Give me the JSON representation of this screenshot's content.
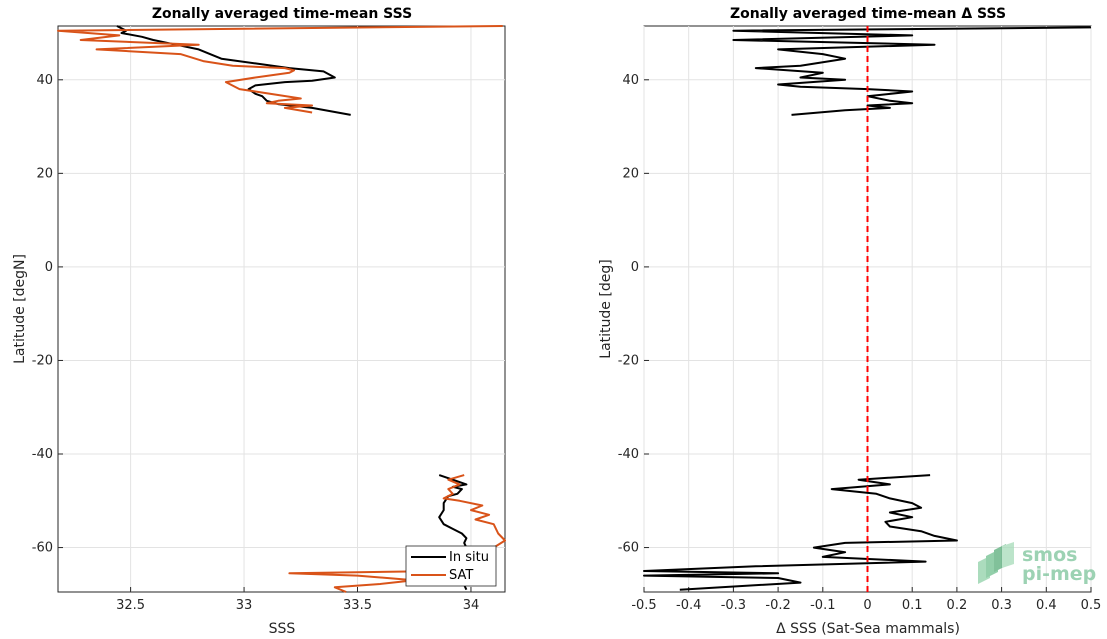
{
  "chart_data": [
    {
      "type": "line",
      "title": "Zonally averaged time-mean SSS",
      "xlabel": "SSS",
      "ylabel": "Latitude [degN]",
      "xlim": [
        32.18,
        34.15
      ],
      "ylim": [
        -69.5,
        51.5
      ],
      "xticks": [
        32.5,
        33,
        33.5,
        34
      ],
      "xtick_labels": [
        "32.5",
        "33",
        "33.5",
        "34"
      ],
      "yticks": [
        -60,
        -40,
        -20,
        0,
        20,
        40
      ],
      "ytick_labels": [
        "-60",
        "-40",
        "-20",
        "0",
        "20",
        "40"
      ],
      "grid": true,
      "legend_position": "bottom-right",
      "series": [
        {
          "name": "In situ",
          "color": "#000000",
          "segments": [
            [
              [
                32.44,
                51.5
              ],
              [
                32.48,
                50.5
              ],
              [
                32.46,
                50.0
              ],
              [
                32.55,
                49.2
              ],
              [
                32.6,
                48.5
              ],
              [
                32.7,
                47.5
              ],
              [
                32.8,
                46.5
              ],
              [
                32.85,
                45.5
              ],
              [
                32.9,
                44.5
              ],
              [
                33.05,
                43.5
              ],
              [
                33.2,
                42.5
              ],
              [
                33.35,
                41.8
              ],
              [
                33.4,
                40.5
              ],
              [
                33.3,
                39.8
              ],
              [
                33.18,
                39.5
              ],
              [
                33.05,
                38.8
              ],
              [
                33.02,
                38.0
              ],
              [
                33.05,
                37.0
              ],
              [
                33.08,
                36.5
              ],
              [
                33.1,
                35.5
              ],
              [
                33.15,
                34.8
              ],
              [
                33.3,
                34.0
              ],
              [
                33.47,
                32.5
              ]
            ],
            [
              [
                33.86,
                -44.5
              ],
              [
                33.92,
                -45.5
              ],
              [
                33.98,
                -46.5
              ],
              [
                33.92,
                -47.0
              ],
              [
                33.96,
                -47.5
              ],
              [
                33.94,
                -48.5
              ],
              [
                33.9,
                -49.0
              ],
              [
                33.88,
                -50.5
              ],
              [
                33.88,
                -52.0
              ],
              [
                33.86,
                -53.5
              ],
              [
                33.88,
                -55.0
              ],
              [
                33.92,
                -56.0
              ],
              [
                33.96,
                -57.0
              ],
              [
                33.98,
                -58.0
              ],
              [
                33.97,
                -59.0
              ],
              [
                33.98,
                -60.0
              ],
              [
                33.99,
                -61.5
              ],
              [
                33.97,
                -63.0
              ],
              [
                33.96,
                -64.5
              ],
              [
                33.94,
                -66.0
              ],
              [
                33.93,
                -67.0
              ],
              [
                33.97,
                -68.0
              ],
              [
                33.98,
                -69.0
              ]
            ]
          ]
        },
        {
          "name": "SAT",
          "color": "#d95319",
          "segments": [
            [
              [
                34.14,
                51.5
              ],
              [
                32.18,
                50.5
              ],
              [
                32.45,
                49.5
              ],
              [
                32.28,
                48.5
              ],
              [
                32.8,
                47.5
              ],
              [
                32.35,
                46.5
              ],
              [
                32.72,
                45.5
              ],
              [
                32.82,
                44.0
              ],
              [
                32.95,
                43.0
              ],
              [
                33.18,
                42.5
              ],
              [
                33.22,
                42.0
              ],
              [
                33.2,
                41.5
              ],
              [
                33.05,
                40.5
              ],
              [
                32.92,
                39.5
              ],
              [
                32.98,
                38.0
              ],
              [
                33.05,
                37.5
              ],
              [
                33.25,
                36.0
              ],
              [
                33.15,
                35.5
              ],
              [
                33.1,
                35.0
              ],
              [
                33.3,
                34.5
              ],
              [
                33.18,
                34.0
              ],
              [
                33.3,
                33.0
              ]
            ],
            [
              [
                33.97,
                -44.5
              ],
              [
                33.9,
                -45.5
              ],
              [
                33.95,
                -46.5
              ],
              [
                33.9,
                -47.5
              ],
              [
                33.92,
                -48.5
              ],
              [
                33.88,
                -49.5
              ],
              [
                33.95,
                -50.0
              ],
              [
                34.05,
                -51.0
              ],
              [
                34.0,
                -52.0
              ],
              [
                34.08,
                -53.0
              ],
              [
                34.02,
                -54.0
              ],
              [
                34.1,
                -55.0
              ],
              [
                34.12,
                -57.0
              ],
              [
                34.15,
                -58.5
              ],
              [
                34.1,
                -60.0
              ],
              [
                33.98,
                -61.0
              ],
              [
                34.0,
                -62.0
              ],
              [
                33.95,
                -63.0
              ],
              [
                33.9,
                -64.5
              ],
              [
                33.88,
                -65.0
              ],
              [
                33.2,
                -65.5
              ],
              [
                33.5,
                -66.0
              ],
              [
                33.75,
                -67.0
              ],
              [
                33.6,
                -67.8
              ],
              [
                33.4,
                -68.5
              ],
              [
                33.45,
                -69.5
              ]
            ]
          ]
        }
      ]
    },
    {
      "type": "line",
      "title": "Zonally averaged time-mean Δ SSS",
      "xlabel": "Δ SSS (Sat-Sea mammals)",
      "ylabel": "Latitude [deg]",
      "xlim": [
        -0.5,
        0.5
      ],
      "ylim": [
        -69.5,
        51.5
      ],
      "xticks": [
        -0.5,
        -0.4,
        -0.3,
        -0.2,
        -0.1,
        0,
        0.1,
        0.2,
        0.3,
        0.4,
        0.5
      ],
      "xtick_labels": [
        "-0.5",
        "-0.4",
        "-0.3",
        "-0.2",
        "-0.1",
        "0",
        "0.1",
        "0.2",
        "0.3",
        "0.4",
        "0.5"
      ],
      "yticks": [
        -60,
        -40,
        -20,
        0,
        20,
        40
      ],
      "ytick_labels": [
        "-60",
        "-40",
        "-20",
        "0",
        "20",
        "40"
      ],
      "grid": true,
      "reference_line": {
        "x": 0,
        "color": "#ff0000",
        "style": "dashed"
      },
      "series": [
        {
          "color": "#000000",
          "segments": [
            [
              [
                0.5,
                51.2
              ],
              [
                -0.3,
                50.5
              ],
              [
                0.1,
                49.5
              ],
              [
                -0.3,
                48.5
              ],
              [
                0.15,
                47.5
              ],
              [
                -0.2,
                46.5
              ],
              [
                -0.1,
                45.5
              ],
              [
                -0.05,
                44.5
              ],
              [
                -0.15,
                43.0
              ],
              [
                -0.25,
                42.5
              ],
              [
                -0.1,
                41.5
              ],
              [
                -0.15,
                40.5
              ],
              [
                -0.05,
                40.0
              ],
              [
                -0.2,
                39.0
              ],
              [
                -0.15,
                38.5
              ],
              [
                0.0,
                38.0
              ],
              [
                0.1,
                37.5
              ],
              [
                0.0,
                36.5
              ],
              [
                0.05,
                35.5
              ],
              [
                0.1,
                35.0
              ],
              [
                0.0,
                34.5
              ],
              [
                0.05,
                34.0
              ],
              [
                -0.05,
                33.5
              ],
              [
                -0.17,
                32.5
              ]
            ],
            [
              [
                0.14,
                -44.5
              ],
              [
                -0.02,
                -45.5
              ],
              [
                0.05,
                -46.5
              ],
              [
                -0.08,
                -47.5
              ],
              [
                0.02,
                -48.5
              ],
              [
                0.05,
                -49.5
              ],
              [
                0.1,
                -50.5
              ],
              [
                0.12,
                -51.5
              ],
              [
                0.05,
                -52.5
              ],
              [
                0.1,
                -53.5
              ],
              [
                0.04,
                -54.5
              ],
              [
                0.05,
                -55.5
              ],
              [
                0.12,
                -56.5
              ],
              [
                0.15,
                -57.5
              ],
              [
                0.2,
                -58.5
              ],
              [
                -0.05,
                -59.0
              ],
              [
                -0.12,
                -60.0
              ],
              [
                -0.05,
                -61.0
              ],
              [
                -0.1,
                -62.0
              ],
              [
                0.13,
                -63.0
              ],
              [
                -0.25,
                -64.0
              ],
              [
                -0.5,
                -65.0
              ],
              [
                -0.2,
                -65.5
              ],
              [
                -0.5,
                -66.0
              ],
              [
                -0.2,
                -66.5
              ],
              [
                -0.15,
                -67.5
              ],
              [
                -0.42,
                -69.0
              ]
            ]
          ]
        }
      ]
    }
  ],
  "logo": {
    "line1": "smos",
    "line2": "pi-mep"
  }
}
